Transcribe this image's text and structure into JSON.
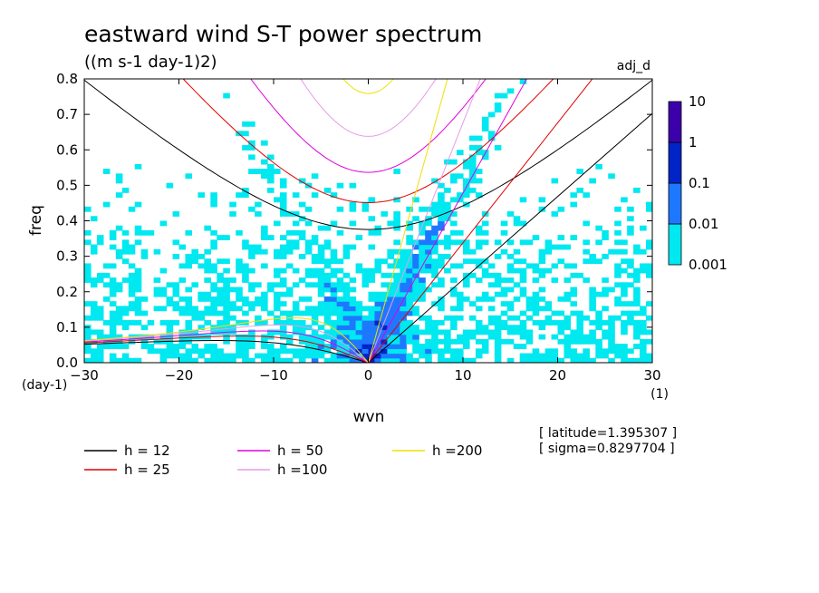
{
  "chart_data": {
    "type": "heatmap",
    "title": "eastward wind S-T power spectrum",
    "subtitle": "((m s-1 day-1)2)",
    "tag": "adj_d",
    "xlabel": "wvn",
    "ylabel": "freq",
    "x_unit": "(1)",
    "y_unit": "(day-1)",
    "xlim": [
      -30,
      30
    ],
    "ylim": [
      0,
      0.8
    ],
    "xticks": [
      -30,
      -20,
      -10,
      0,
      10,
      20,
      30
    ],
    "yticks": [
      0.0,
      0.1,
      0.2,
      0.3,
      0.4,
      0.5,
      0.6,
      0.7,
      0.8
    ],
    "xtick_labels": [
      "-30",
      "-20",
      "-10",
      "0",
      "10",
      "20",
      "30"
    ],
    "ytick_labels": [
      "0.0",
      "0.1",
      "0.2",
      "0.3",
      "0.4",
      "0.5",
      "0.6",
      "0.7",
      "0.8"
    ],
    "colorbar": {
      "levels": [
        0.001,
        0.01,
        0.1,
        1,
        10
      ],
      "labels": [
        "0.001",
        "0.01",
        "0.1",
        "1",
        "10"
      ],
      "colors": [
        "#00e8f0",
        "#1e78ff",
        "#0024c8",
        "#3c00aa"
      ]
    },
    "info": [
      "[ latitude=1.395307 ]",
      "[ sigma=0.8297704 ]"
    ],
    "legend": [
      {
        "label": "h = 12",
        "color": "#000000"
      },
      {
        "label": "h = 25",
        "color": "#e00000"
      },
      {
        "label": "h = 50",
        "color": "#e000e0"
      },
      {
        "label": "h =100",
        "color": "#e89ae8"
      },
      {
        "label": "h =200",
        "color": "#f0e000"
      }
    ],
    "series": [
      {
        "name": "h = 12",
        "equivalent_depth": 12
      },
      {
        "name": "h = 25",
        "equivalent_depth": 25
      },
      {
        "name": "h = 50",
        "equivalent_depth": 50
      },
      {
        "name": "h =100",
        "equivalent_depth": 100
      },
      {
        "name": "h =200",
        "equivalent_depth": 200
      }
    ]
  }
}
